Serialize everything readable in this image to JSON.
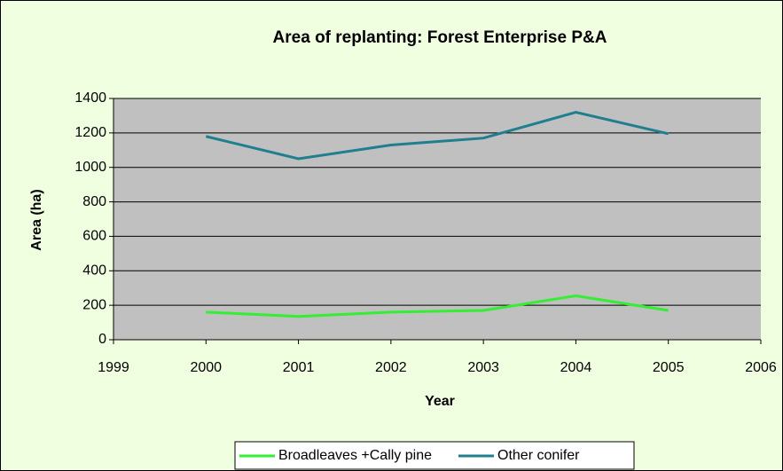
{
  "chart_data": {
    "type": "line",
    "title": "Area of replanting: Forest Enterprise  P&A",
    "xlabel": "Year",
    "ylabel": "Area (ha)",
    "x": [
      2000,
      2001,
      2002,
      2003,
      2004,
      2005
    ],
    "series": [
      {
        "name": "Broadleaves +Cally pine",
        "color": "#33ee33",
        "values": [
          160,
          135,
          160,
          170,
          255,
          170
        ]
      },
      {
        "name": "Other conifer",
        "color": "#1f7f8f",
        "values": [
          1180,
          1050,
          1130,
          1170,
          1320,
          1195
        ]
      }
    ],
    "xlim": [
      1999,
      2006
    ],
    "xticks": [
      1999,
      2000,
      2001,
      2002,
      2003,
      2004,
      2005,
      2006
    ],
    "ylim": [
      0,
      1400
    ],
    "yticks": [
      0,
      200,
      400,
      600,
      800,
      1000,
      1200,
      1400
    ],
    "grid": true,
    "legend": "bottom"
  }
}
